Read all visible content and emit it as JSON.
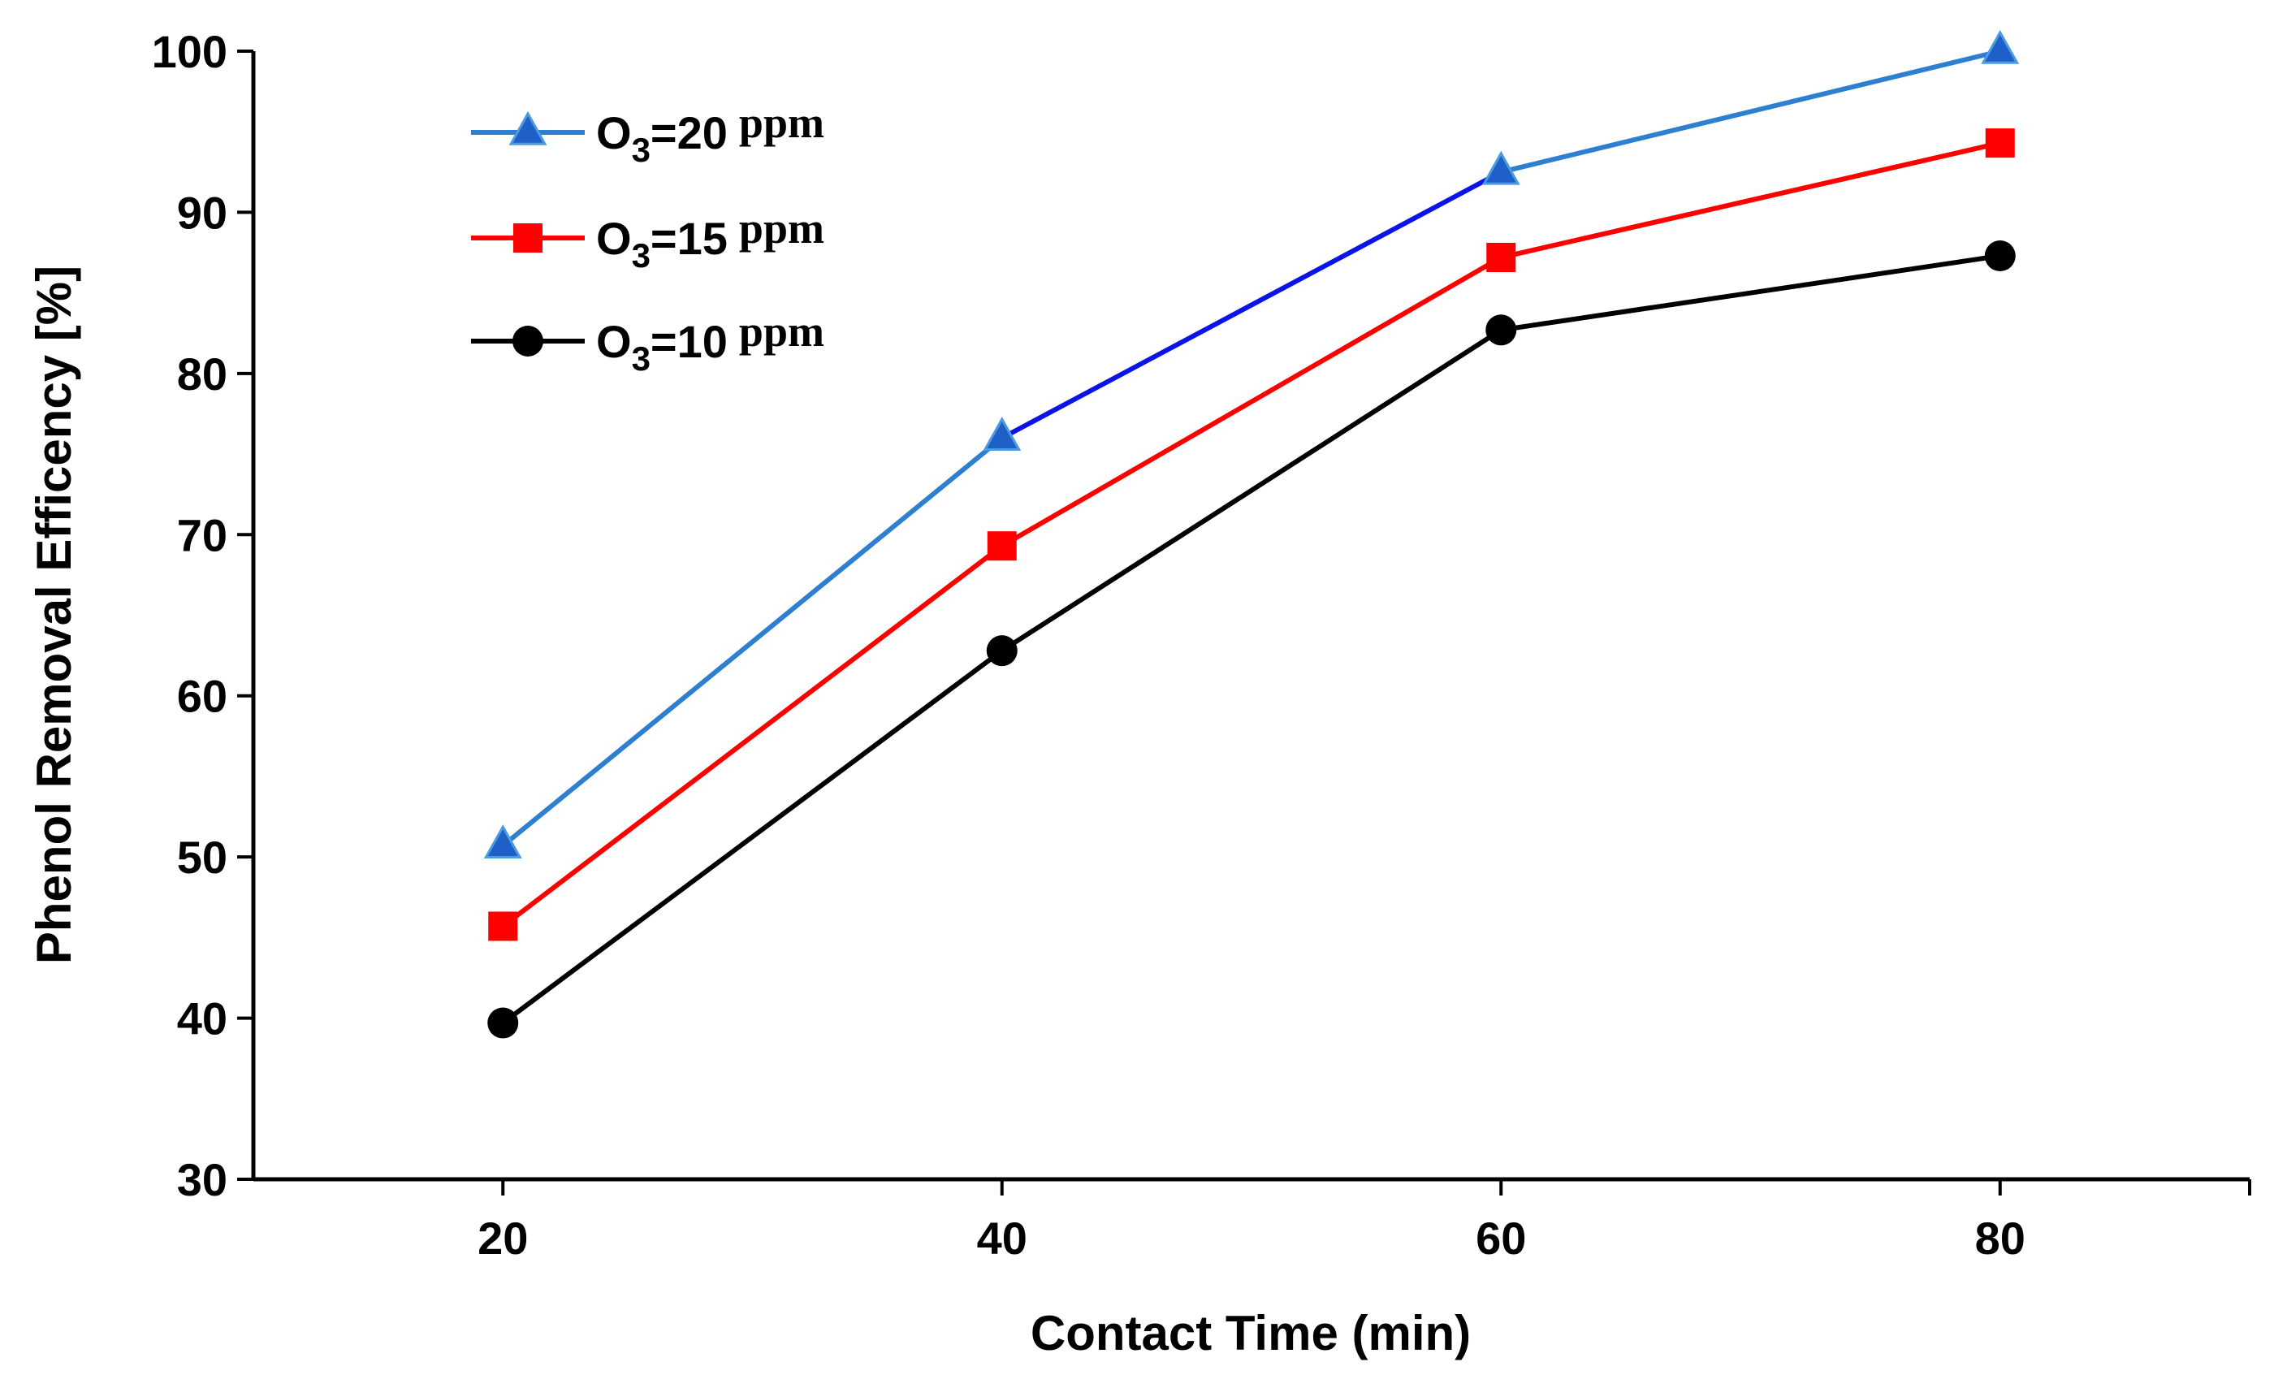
{
  "chart_data": {
    "type": "line",
    "title": "",
    "xlabel": "Contact Time (min)",
    "ylabel": "Phenol Removal Efficency [%]",
    "x": [
      20,
      40,
      60,
      80
    ],
    "xticks": [
      "20",
      "40",
      "60",
      "80"
    ],
    "xlim": [
      10,
      90
    ],
    "yticks": [
      "30",
      "40",
      "50",
      "60",
      "70",
      "80",
      "90",
      "100"
    ],
    "ylim": [
      30,
      100
    ],
    "grid": false,
    "legend_position": "top-left",
    "series": [
      {
        "name": "O3=20 ppm",
        "legend_main": "O",
        "legend_sub": "3",
        "legend_value": "=20",
        "legend_unit": "ppm",
        "marker": "triangle",
        "line_color": "#2f7fd1",
        "marker_color": "#1f5fc8",
        "segment_colors": [
          "#2f7fd1",
          "#0a14e6",
          "#2f7fd1"
        ],
        "values": [
          50.7,
          76.0,
          92.5,
          100.0
        ]
      },
      {
        "name": "O3=15 ppm",
        "legend_main": "O",
        "legend_sub": "3",
        "legend_value": "=15",
        "legend_unit": "ppm",
        "marker": "square",
        "line_color": "#ff0000",
        "marker_color": "#ff0000",
        "segment_colors": [
          "#ff0000",
          "#ff0000",
          "#ff0000"
        ],
        "values": [
          45.7,
          69.3,
          87.2,
          94.3
        ]
      },
      {
        "name": "O3=10 ppm",
        "legend_main": "O",
        "legend_sub": "3",
        "legend_value": "=10",
        "legend_unit": "ppm",
        "marker": "circle",
        "line_color": "#000000",
        "marker_color": "#000000",
        "segment_colors": [
          "#000000",
          "#000000",
          "#000000"
        ],
        "values": [
          39.7,
          62.8,
          82.7,
          87.3
        ]
      }
    ]
  }
}
